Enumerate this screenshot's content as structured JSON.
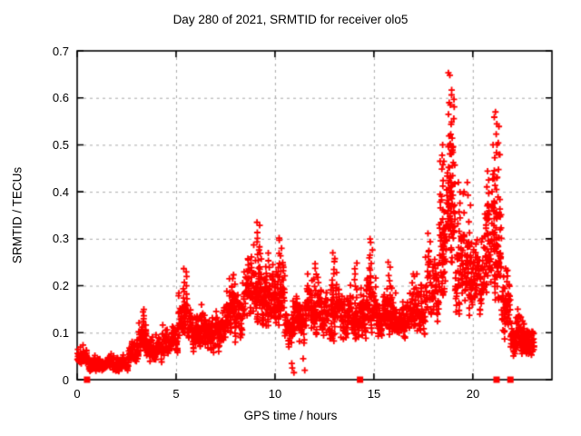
{
  "chart_data": {
    "type": "scatter",
    "title": "Day 280 of 2021, SRMTID for receiver olo5",
    "xlabel": "GPS time / hours",
    "ylabel": "SRMTID / TECUs",
    "xlim": [
      0,
      24
    ],
    "ylim": [
      0,
      0.7
    ],
    "xticks": [
      0,
      5,
      10,
      15,
      20
    ],
    "yticks": [
      0,
      0.1,
      0.2,
      0.3,
      0.4,
      0.5,
      0.6,
      0.7
    ],
    "grid": true,
    "grid_color": "#a8a8a8",
    "border_color": "#000000",
    "background": "#ffffff",
    "marker": "plus",
    "marker_color": "#ff0000",
    "marker_size_px": 7,
    "envelope_bands_x0_x1_lo_hi_n": [
      [
        0.0,
        0.6,
        0.03,
        0.075,
        40
      ],
      [
        0.6,
        2.6,
        0.015,
        0.055,
        150
      ],
      [
        2.6,
        3.1,
        0.03,
        0.095,
        40
      ],
      [
        3.1,
        3.5,
        0.055,
        0.15,
        35
      ],
      [
        3.5,
        4.3,
        0.035,
        0.105,
        60
      ],
      [
        4.3,
        5.1,
        0.05,
        0.145,
        60
      ],
      [
        5.1,
        5.7,
        0.07,
        0.2,
        45
      ],
      [
        5.7,
        7.4,
        0.055,
        0.165,
        130
      ],
      [
        7.4,
        8.4,
        0.07,
        0.215,
        80
      ],
      [
        8.4,
        9.4,
        0.1,
        0.29,
        80
      ],
      [
        9.4,
        10.1,
        0.09,
        0.245,
        60
      ],
      [
        10.1,
        10.5,
        0.1,
        0.265,
        35
      ],
      [
        10.5,
        11.6,
        0.07,
        0.19,
        90
      ],
      [
        11.6,
        12.3,
        0.09,
        0.225,
        60
      ],
      [
        12.3,
        13.2,
        0.075,
        0.245,
        70
      ],
      [
        13.2,
        14.6,
        0.075,
        0.205,
        110
      ],
      [
        14.6,
        15.1,
        0.1,
        0.265,
        40
      ],
      [
        15.1,
        16.6,
        0.08,
        0.2,
        115
      ],
      [
        16.6,
        17.6,
        0.09,
        0.225,
        75
      ],
      [
        17.6,
        18.3,
        0.11,
        0.33,
        55
      ],
      [
        18.3,
        18.7,
        0.18,
        0.5,
        45
      ],
      [
        18.7,
        19.1,
        0.22,
        0.6,
        40
      ],
      [
        19.1,
        19.6,
        0.14,
        0.4,
        40
      ],
      [
        19.6,
        20.4,
        0.12,
        0.33,
        65
      ],
      [
        20.4,
        21.0,
        0.14,
        0.4,
        55
      ],
      [
        21.0,
        21.45,
        0.17,
        0.5,
        45
      ],
      [
        21.45,
        21.9,
        0.08,
        0.28,
        45
      ],
      [
        21.9,
        22.35,
        0.045,
        0.15,
        40
      ],
      [
        22.35,
        23.1,
        0.03,
        0.125,
        60
      ]
    ],
    "spike_columns_x_y0_y1_n": [
      [
        3.3,
        0.08,
        0.15,
        12
      ],
      [
        5.45,
        0.12,
        0.24,
        12
      ],
      [
        7.9,
        0.12,
        0.225,
        12
      ],
      [
        9.15,
        0.18,
        0.335,
        16
      ],
      [
        9.6,
        0.15,
        0.27,
        10
      ],
      [
        10.25,
        0.16,
        0.305,
        14
      ],
      [
        12.0,
        0.14,
        0.25,
        10
      ],
      [
        12.95,
        0.15,
        0.27,
        12
      ],
      [
        14.1,
        0.14,
        0.25,
        10
      ],
      [
        14.85,
        0.16,
        0.3,
        14
      ],
      [
        15.8,
        0.13,
        0.25,
        10
      ],
      [
        17.0,
        0.13,
        0.22,
        8
      ],
      [
        18.5,
        0.25,
        0.5,
        18
      ],
      [
        18.85,
        0.3,
        0.655,
        26
      ],
      [
        19.0,
        0.25,
        0.6,
        14
      ],
      [
        19.35,
        0.2,
        0.42,
        12
      ],
      [
        19.8,
        0.18,
        0.42,
        10
      ],
      [
        20.75,
        0.2,
        0.45,
        14
      ],
      [
        21.15,
        0.25,
        0.57,
        20
      ],
      [
        21.3,
        0.22,
        0.54,
        12
      ],
      [
        22.5,
        0.06,
        0.135,
        10
      ],
      [
        10.9,
        0.015,
        0.035,
        3
      ],
      [
        11.5,
        0.02,
        0.045,
        2
      ]
    ],
    "baseline_markers": {
      "shape": "filled-square",
      "color": "#ff0000",
      "y": 0,
      "x": [
        0.5,
        14.3,
        21.2,
        21.9
      ]
    }
  }
}
